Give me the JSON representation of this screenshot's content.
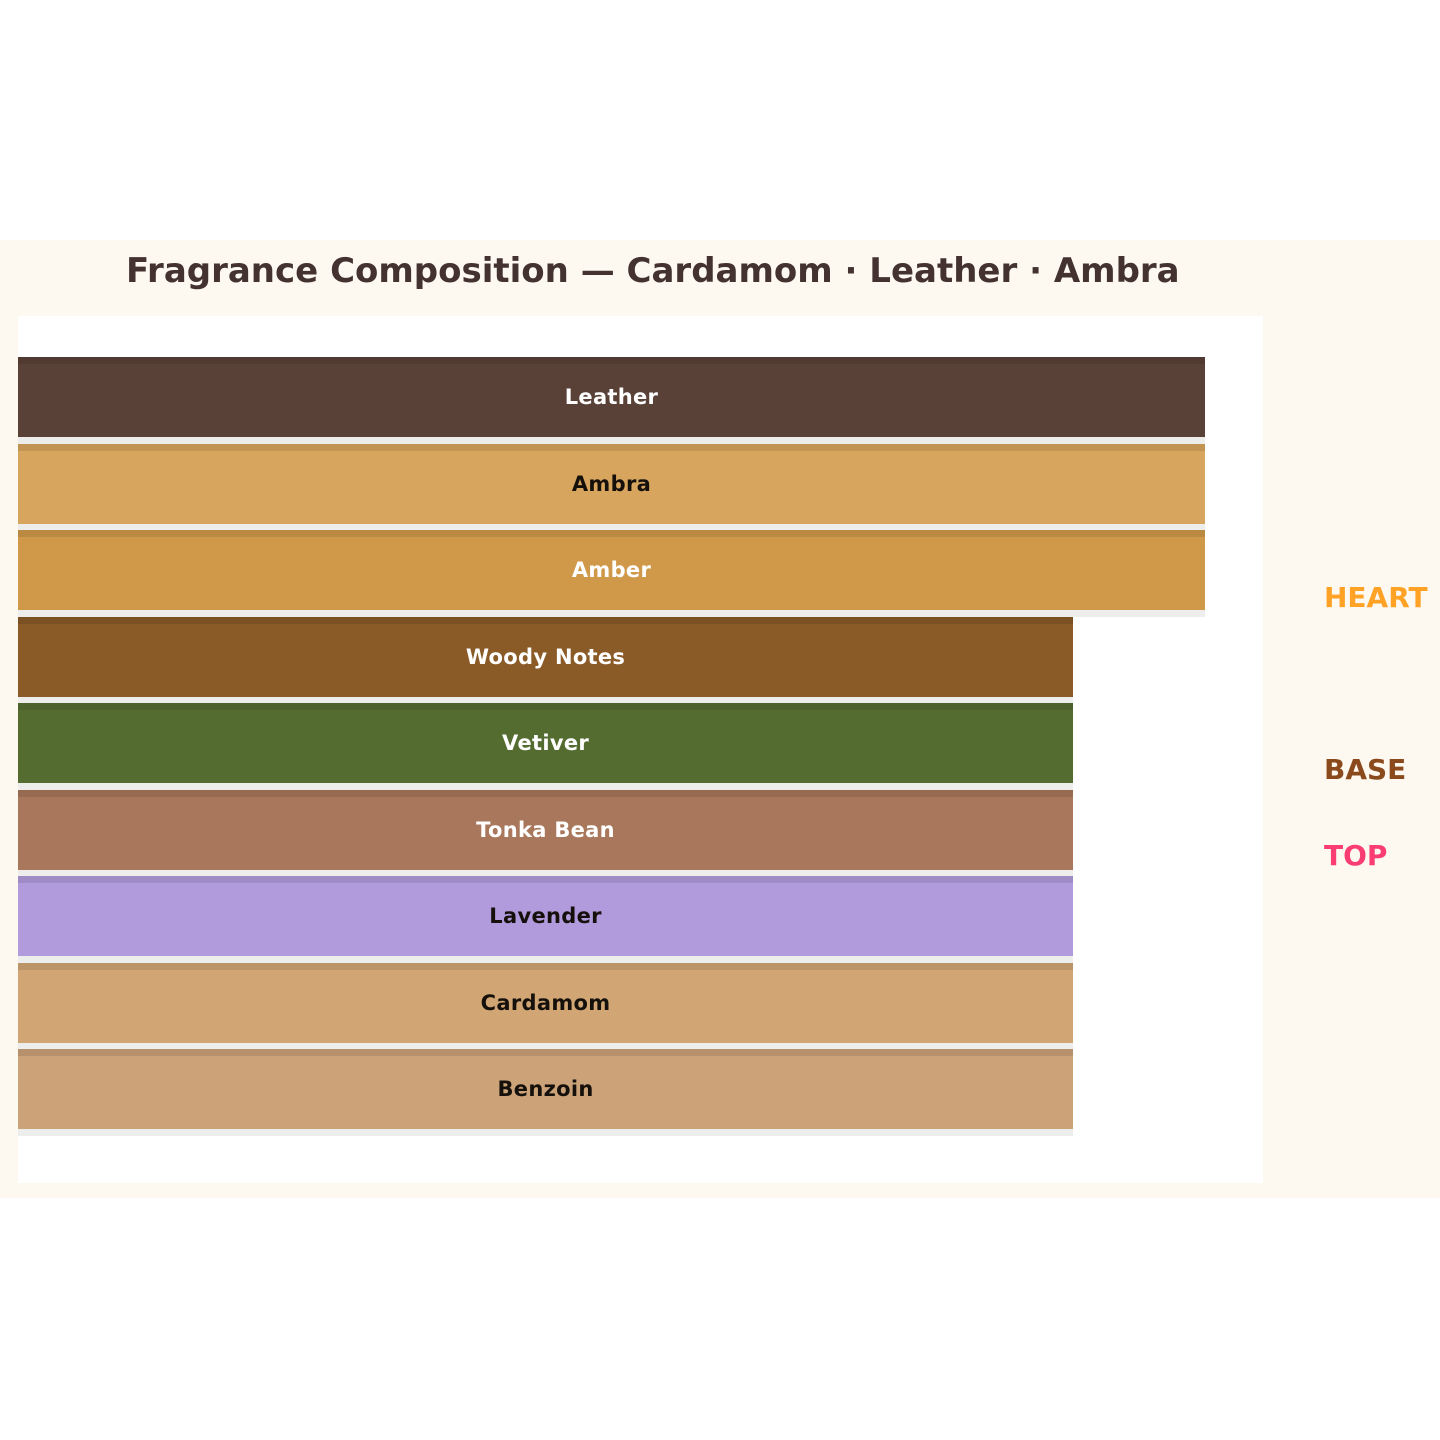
{
  "chart_data": {
    "type": "bar",
    "orientation": "horizontal",
    "title": "Fragrance Composition — Cardamom · Leather · Ambra",
    "categories": [
      "Leather",
      "Ambra",
      "Amber",
      "Woody Notes",
      "Vetiver",
      "Tonka Bean",
      "Lavender",
      "Cardamom",
      "Benzoin"
    ],
    "values": [
      9,
      9,
      9,
      8,
      8,
      8,
      8,
      8,
      8
    ],
    "xlim": [
      0,
      9.44
    ],
    "grid": false,
    "legend": false,
    "axis_labels_visible": false,
    "bar_colors": [
      "#5a4138",
      "#d7a55d",
      "#d0994a",
      "#8a5b27",
      "#556c30",
      "#a9775c",
      "#b19bdc",
      "#d1a674",
      "#cca279"
    ],
    "bar_label_colors": [
      "#ffffff",
      "#15100b",
      "#ffffff",
      "#ffffff",
      "#ffffff",
      "#ffffff",
      "#15100b",
      "#15100b",
      "#15100b"
    ],
    "annotations": [
      {
        "label": "HEART",
        "color": "#ffa226",
        "position": "right"
      },
      {
        "label": "BASE",
        "color": "#8b4a1b",
        "position": "right"
      },
      {
        "label": "TOP",
        "color": "#fa3e74",
        "position": "right"
      }
    ]
  },
  "colors": {
    "page_background": "#ffffff",
    "figure_background": "#fdf8f0",
    "plot_background": "#ffffff",
    "title_color": "#433230",
    "bar_top_edge_overlay": "rgba(0,0,0,0.10)",
    "bar_shadow": "rgba(60,50,40,0.09)"
  }
}
